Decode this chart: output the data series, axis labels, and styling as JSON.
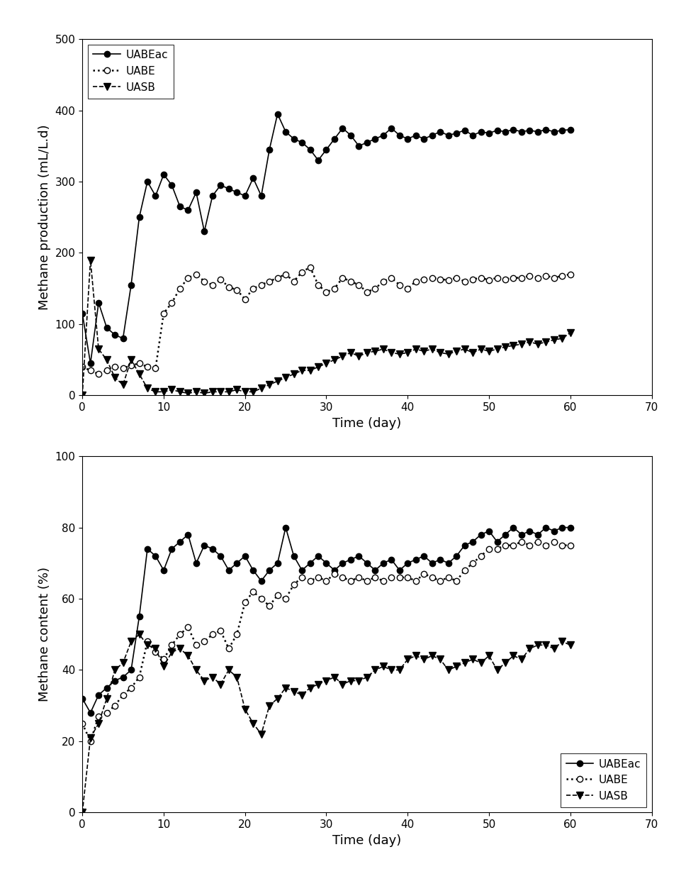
{
  "plot1": {
    "ylabel": "Methane production (mL/L.d)",
    "xlabel": "Time (day)",
    "xlim": [
      0,
      70
    ],
    "ylim": [
      0,
      500
    ],
    "xticks": [
      0,
      10,
      20,
      30,
      40,
      50,
      60,
      70
    ],
    "yticks": [
      0,
      100,
      200,
      300,
      400,
      500
    ],
    "UABEac": {
      "x": [
        0,
        1,
        2,
        3,
        4,
        5,
        6,
        7,
        8,
        9,
        10,
        11,
        12,
        13,
        14,
        15,
        16,
        17,
        18,
        19,
        20,
        21,
        22,
        23,
        24,
        25,
        26,
        27,
        28,
        29,
        30,
        31,
        32,
        33,
        34,
        35,
        36,
        37,
        38,
        39,
        40,
        41,
        42,
        43,
        44,
        45,
        46,
        47,
        48,
        49,
        50,
        51,
        52,
        53,
        54,
        55,
        56,
        57,
        58,
        59,
        60
      ],
      "y": [
        115,
        45,
        130,
        95,
        85,
        80,
        155,
        250,
        300,
        280,
        310,
        295,
        265,
        260,
        285,
        230,
        280,
        295,
        290,
        285,
        280,
        305,
        280,
        345,
        395,
        370,
        360,
        355,
        345,
        330,
        345,
        360,
        375,
        365,
        350,
        355,
        360,
        365,
        375,
        365,
        360,
        365,
        360,
        365,
        370,
        365,
        368,
        372,
        365,
        370,
        368,
        372,
        370,
        373,
        370,
        372,
        370,
        373,
        370,
        372,
        373
      ]
    },
    "UABE": {
      "x": [
        0,
        1,
        2,
        3,
        4,
        5,
        6,
        7,
        8,
        9,
        10,
        11,
        12,
        13,
        14,
        15,
        16,
        17,
        18,
        19,
        20,
        21,
        22,
        23,
        24,
        25,
        26,
        27,
        28,
        29,
        30,
        31,
        32,
        33,
        34,
        35,
        36,
        37,
        38,
        39,
        40,
        41,
        42,
        43,
        44,
        45,
        46,
        47,
        48,
        49,
        50,
        51,
        52,
        53,
        54,
        55,
        56,
        57,
        58,
        59,
        60
      ],
      "y": [
        40,
        35,
        30,
        35,
        40,
        38,
        42,
        45,
        40,
        38,
        115,
        130,
        150,
        165,
        170,
        160,
        155,
        163,
        152,
        148,
        135,
        150,
        155,
        160,
        165,
        170,
        160,
        173,
        180,
        155,
        145,
        150,
        165,
        160,
        155,
        145,
        150,
        160,
        165,
        155,
        150,
        160,
        163,
        165,
        163,
        162,
        165,
        160,
        163,
        165,
        162,
        165,
        163,
        165,
        165,
        168,
        165,
        168,
        165,
        168,
        170
      ]
    },
    "UASB": {
      "x": [
        0,
        1,
        2,
        3,
        4,
        5,
        6,
        7,
        8,
        9,
        10,
        11,
        12,
        13,
        14,
        15,
        16,
        17,
        18,
        19,
        20,
        21,
        22,
        23,
        24,
        25,
        26,
        27,
        28,
        29,
        30,
        31,
        32,
        33,
        34,
        35,
        36,
        37,
        38,
        39,
        40,
        41,
        42,
        43,
        44,
        45,
        46,
        47,
        48,
        49,
        50,
        51,
        52,
        53,
        54,
        55,
        56,
        57,
        58,
        59,
        60
      ],
      "y": [
        0,
        190,
        65,
        50,
        25,
        15,
        50,
        30,
        10,
        5,
        5,
        8,
        5,
        3,
        5,
        3,
        5,
        5,
        5,
        8,
        5,
        5,
        10,
        15,
        20,
        25,
        30,
        35,
        35,
        40,
        45,
        50,
        55,
        60,
        55,
        60,
        62,
        65,
        60,
        58,
        60,
        65,
        62,
        65,
        60,
        58,
        62,
        65,
        60,
        65,
        62,
        65,
        68,
        70,
        72,
        75,
        72,
        75,
        78,
        80,
        88
      ]
    },
    "legend_loc": "upper left"
  },
  "plot2": {
    "ylabel": "Methane content (%)",
    "xlabel": "Time (day)",
    "xlim": [
      0,
      70
    ],
    "ylim": [
      0,
      100
    ],
    "xticks": [
      0,
      10,
      20,
      30,
      40,
      50,
      60,
      70
    ],
    "yticks": [
      0,
      20,
      40,
      60,
      80,
      100
    ],
    "UABEac": {
      "x": [
        0,
        1,
        2,
        3,
        4,
        5,
        6,
        7,
        8,
        9,
        10,
        11,
        12,
        13,
        14,
        15,
        16,
        17,
        18,
        19,
        20,
        21,
        22,
        23,
        24,
        25,
        26,
        27,
        28,
        29,
        30,
        31,
        32,
        33,
        34,
        35,
        36,
        37,
        38,
        39,
        40,
        41,
        42,
        43,
        44,
        45,
        46,
        47,
        48,
        49,
        50,
        51,
        52,
        53,
        54,
        55,
        56,
        57,
        58,
        59,
        60
      ],
      "y": [
        32,
        28,
        33,
        35,
        37,
        38,
        40,
        55,
        74,
        72,
        68,
        74,
        76,
        78,
        70,
        75,
        74,
        72,
        68,
        70,
        72,
        68,
        65,
        68,
        70,
        80,
        72,
        68,
        70,
        72,
        70,
        68,
        70,
        71,
        72,
        70,
        68,
        70,
        71,
        68,
        70,
        71,
        72,
        70,
        71,
        70,
        72,
        75,
        76,
        78,
        79,
        76,
        78,
        80,
        78,
        79,
        78,
        80,
        79,
        80,
        80
      ]
    },
    "UABE": {
      "x": [
        0,
        1,
        2,
        3,
        4,
        5,
        6,
        7,
        8,
        9,
        10,
        11,
        12,
        13,
        14,
        15,
        16,
        17,
        18,
        19,
        20,
        21,
        22,
        23,
        24,
        25,
        26,
        27,
        28,
        29,
        30,
        31,
        32,
        33,
        34,
        35,
        36,
        37,
        38,
        39,
        40,
        41,
        42,
        43,
        44,
        45,
        46,
        47,
        48,
        49,
        50,
        51,
        52,
        53,
        54,
        55,
        56,
        57,
        58,
        59,
        60
      ],
      "y": [
        25,
        20,
        27,
        28,
        30,
        33,
        35,
        38,
        48,
        45,
        43,
        47,
        50,
        52,
        47,
        48,
        50,
        51,
        46,
        50,
        59,
        62,
        60,
        58,
        61,
        60,
        64,
        66,
        65,
        66,
        65,
        67,
        66,
        65,
        66,
        65,
        66,
        65,
        66,
        66,
        66,
        65,
        67,
        66,
        65,
        66,
        65,
        68,
        70,
        72,
        74,
        74,
        75,
        75,
        76,
        75,
        76,
        75,
        76,
        75,
        75
      ]
    },
    "UASB": {
      "x": [
        0,
        1,
        2,
        3,
        4,
        5,
        6,
        7,
        8,
        9,
        10,
        11,
        12,
        13,
        14,
        15,
        16,
        17,
        18,
        19,
        20,
        21,
        22,
        23,
        24,
        25,
        26,
        27,
        28,
        29,
        30,
        31,
        32,
        33,
        34,
        35,
        36,
        37,
        38,
        39,
        40,
        41,
        42,
        43,
        44,
        45,
        46,
        47,
        48,
        49,
        50,
        51,
        52,
        53,
        54,
        55,
        56,
        57,
        58,
        59,
        60
      ],
      "y": [
        0,
        21,
        25,
        32,
        40,
        42,
        48,
        50,
        47,
        46,
        41,
        45,
        46,
        44,
        40,
        37,
        38,
        36,
        40,
        38,
        29,
        25,
        22,
        30,
        32,
        35,
        34,
        33,
        35,
        36,
        37,
        38,
        36,
        37,
        37,
        38,
        40,
        41,
        40,
        40,
        43,
        44,
        43,
        44,
        43,
        40,
        41,
        42,
        43,
        42,
        44,
        40,
        42,
        44,
        43,
        46,
        47,
        47,
        46,
        48,
        47
      ]
    },
    "legend_loc": "lower right"
  },
  "line_color": "#000000",
  "bg_color": "#ffffff",
  "marker_size": 6,
  "line_width": 1.2,
  "tick_fontsize": 11,
  "label_fontsize": 13,
  "legend_fontsize": 11
}
